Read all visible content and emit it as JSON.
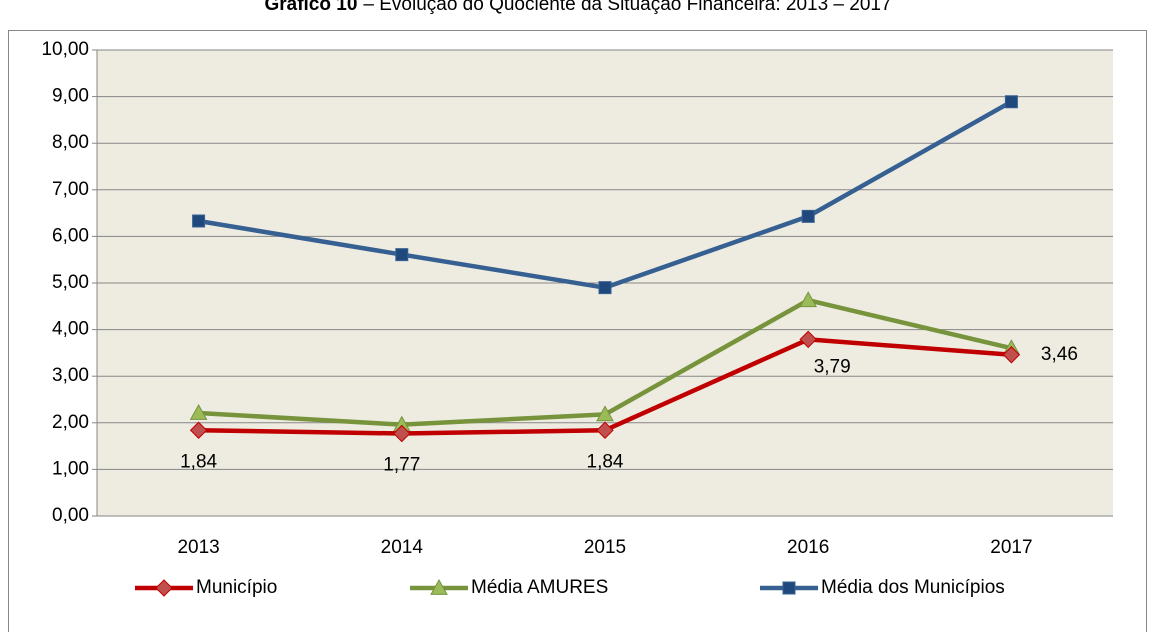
{
  "chart_data": {
    "type": "line",
    "title": "Gráfico 10",
    "subtitle": "– Evolução do Quociente da Situação Financeira: 2013 – 2017",
    "categories": [
      "2013",
      "2014",
      "2015",
      "2016",
      "2017"
    ],
    "series": [
      {
        "name": "Município",
        "color": "#c00000",
        "marker": "diamond",
        "values": [
          1.84,
          1.77,
          1.84,
          3.79,
          3.46
        ],
        "value_labels": [
          "1,84",
          "1,77",
          "1,84",
          "3,79",
          "3,46"
        ]
      },
      {
        "name": "Média AMURES",
        "color": "#77933c",
        "marker": "triangle",
        "values": [
          2.21,
          1.96,
          2.18,
          4.63,
          3.6
        ]
      },
      {
        "name": "Média dos Municípios",
        "color": "#376092",
        "marker": "square",
        "values": [
          6.33,
          5.61,
          4.9,
          6.43,
          8.89
        ]
      }
    ],
    "ylim": [
      0,
      10
    ],
    "yticks": [
      {
        "value": 0,
        "label": "0,00"
      },
      {
        "value": 1,
        "label": "1,00"
      },
      {
        "value": 2,
        "label": "2,00"
      },
      {
        "value": 3,
        "label": "3,00"
      },
      {
        "value": 4,
        "label": "4,00"
      },
      {
        "value": 5,
        "label": "5,00"
      },
      {
        "value": 6,
        "label": "6,00"
      },
      {
        "value": 7,
        "label": "7,00"
      },
      {
        "value": 8,
        "label": "8,00"
      },
      {
        "value": 9,
        "label": "9,00"
      },
      {
        "value": 10,
        "label": "10,00"
      }
    ],
    "grid": true,
    "legend": "bottom"
  }
}
